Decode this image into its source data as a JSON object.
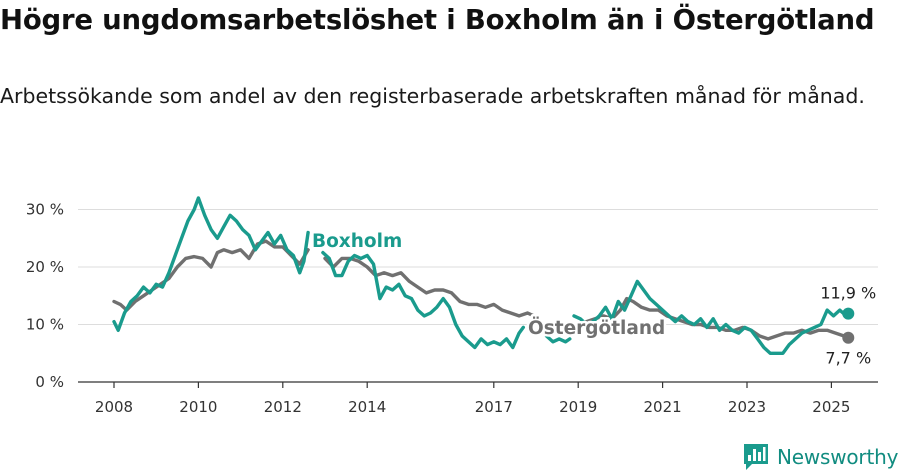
{
  "header": {
    "title": "Högre ungdomsarbetslöshet i Boxholm än i Östergötland",
    "subtitle": "Arbetssökande som andel av den registerbaserade arbetskraften månad för månad."
  },
  "brand": {
    "name": "Newsworthy",
    "logo_icon": "bar-chart-icon",
    "color": "#1a9b8d"
  },
  "chart_data": {
    "type": "line",
    "title": "Högre ungdomsarbetslöshet i Boxholm än i Östergötland",
    "subtitle": "Arbetssökande som andel av den registerbaserade arbetskraften månad för månad.",
    "xlabel": "",
    "ylabel": "",
    "ylim": [
      0,
      35
    ],
    "y_ticks": [
      0,
      10,
      20,
      30
    ],
    "y_tick_labels": [
      "0 %",
      "10 %",
      "20 %",
      "30 %"
    ],
    "x_ticks": [
      2008,
      2010,
      2012,
      2014,
      2017,
      2019,
      2021,
      2023,
      2025
    ],
    "x_tick_labels": [
      "2008",
      "2010",
      "2012",
      "2014",
      "2017",
      "2019",
      "2021",
      "2023",
      "2025"
    ],
    "grid": "horizontal",
    "legend": "inline labels",
    "series": [
      {
        "name": "Boxholm",
        "color": "#1a9b8d",
        "end_label": "11,9 %",
        "points": [
          [
            2008.0,
            10.5
          ],
          [
            2008.1,
            9.0
          ],
          [
            2008.25,
            12.0
          ],
          [
            2008.4,
            14.0
          ],
          [
            2008.55,
            15.0
          ],
          [
            2008.7,
            16.5
          ],
          [
            2008.85,
            15.5
          ],
          [
            2009.0,
            17.0
          ],
          [
            2009.15,
            16.5
          ],
          [
            2009.3,
            19.0
          ],
          [
            2009.45,
            22.0
          ],
          [
            2009.6,
            25.0
          ],
          [
            2009.75,
            28.0
          ],
          [
            2009.9,
            30.0
          ],
          [
            2010.0,
            32.0
          ],
          [
            2010.15,
            29.0
          ],
          [
            2010.3,
            26.5
          ],
          [
            2010.45,
            25.0
          ],
          [
            2010.6,
            27.0
          ],
          [
            2010.75,
            29.0
          ],
          [
            2010.9,
            28.0
          ],
          [
            2011.05,
            26.5
          ],
          [
            2011.2,
            25.5
          ],
          [
            2011.35,
            23.0
          ],
          [
            2011.5,
            24.5
          ],
          [
            2011.65,
            26.0
          ],
          [
            2011.8,
            24.0
          ],
          [
            2011.95,
            25.5
          ],
          [
            2012.1,
            23.0
          ],
          [
            2012.25,
            22.0
          ],
          [
            2012.4,
            19.0
          ],
          [
            2012.5,
            21.0
          ],
          [
            2012.6,
            26.0
          ],
          null,
          [
            2012.95,
            22.5
          ],
          [
            2013.1,
            21.5
          ],
          [
            2013.25,
            18.5
          ],
          [
            2013.4,
            18.5
          ],
          [
            2013.55,
            21.0
          ],
          [
            2013.7,
            22.0
          ],
          [
            2013.85,
            21.5
          ],
          [
            2014.0,
            22.0
          ],
          [
            2014.15,
            20.5
          ],
          [
            2014.3,
            14.5
          ],
          [
            2014.45,
            16.5
          ],
          [
            2014.6,
            16.0
          ],
          [
            2014.75,
            17.0
          ],
          [
            2014.9,
            15.0
          ],
          [
            2015.05,
            14.5
          ],
          [
            2015.2,
            12.5
          ],
          [
            2015.35,
            11.5
          ],
          [
            2015.5,
            12.0
          ],
          [
            2015.65,
            13.0
          ],
          [
            2015.8,
            14.5
          ],
          [
            2015.95,
            13.0
          ],
          [
            2016.1,
            10.0
          ],
          [
            2016.25,
            8.0
          ],
          [
            2016.4,
            7.0
          ],
          [
            2016.55,
            6.0
          ],
          [
            2016.7,
            7.5
          ],
          [
            2016.85,
            6.5
          ],
          [
            2017.0,
            7.0
          ],
          [
            2017.15,
            6.5
          ],
          [
            2017.3,
            7.5
          ],
          [
            2017.45,
            6.0
          ],
          [
            2017.6,
            8.5
          ],
          [
            2017.7,
            9.5
          ],
          null,
          [
            2018.25,
            8.0
          ],
          [
            2018.4,
            7.0
          ],
          [
            2018.55,
            7.5
          ],
          [
            2018.7,
            7.0
          ],
          [
            2018.8,
            7.5
          ],
          null,
          [
            2018.9,
            11.5
          ],
          [
            2019.05,
            11.0
          ],
          [
            2019.2,
            10.0
          ],
          [
            2019.35,
            10.5
          ],
          [
            2019.5,
            11.5
          ],
          [
            2019.65,
            13.0
          ],
          [
            2019.8,
            11.0
          ],
          [
            2019.95,
            14.0
          ],
          [
            2020.1,
            12.5
          ],
          [
            2020.25,
            15.0
          ],
          [
            2020.4,
            17.5
          ],
          [
            2020.55,
            16.0
          ],
          [
            2020.7,
            14.5
          ],
          [
            2020.85,
            13.5
          ],
          [
            2021.0,
            12.5
          ],
          [
            2021.15,
            11.5
          ],
          [
            2021.3,
            10.5
          ],
          [
            2021.45,
            11.5
          ],
          [
            2021.6,
            10.5
          ],
          [
            2021.75,
            10.0
          ],
          [
            2021.9,
            11.0
          ],
          [
            2022.05,
            9.5
          ],
          [
            2022.2,
            11.0
          ],
          [
            2022.35,
            9.0
          ],
          [
            2022.5,
            10.0
          ],
          [
            2022.65,
            9.0
          ],
          [
            2022.8,
            8.5
          ],
          [
            2022.95,
            9.5
          ],
          [
            2023.1,
            9.0
          ],
          [
            2023.25,
            7.5
          ],
          [
            2023.4,
            6.0
          ],
          [
            2023.55,
            5.0
          ],
          [
            2023.7,
            5.0
          ],
          [
            2023.85,
            5.0
          ],
          [
            2024.0,
            6.5
          ],
          [
            2024.15,
            7.5
          ],
          [
            2024.3,
            8.5
          ],
          [
            2024.45,
            9.0
          ],
          [
            2024.6,
            9.5
          ],
          [
            2024.75,
            10.0
          ],
          [
            2024.9,
            12.5
          ],
          [
            2025.05,
            11.5
          ],
          [
            2025.2,
            12.5
          ],
          [
            2025.35,
            11.5
          ],
          [
            2025.4,
            11.9
          ]
        ]
      },
      {
        "name": "Östergötland",
        "color": "#707070",
        "end_label": "7,7 %",
        "points": [
          [
            2008.0,
            14.0
          ],
          [
            2008.15,
            13.5
          ],
          [
            2008.3,
            12.5
          ],
          [
            2008.5,
            14.0
          ],
          [
            2008.7,
            15.0
          ],
          [
            2008.9,
            16.0
          ],
          [
            2009.1,
            17.0
          ],
          [
            2009.3,
            18.0
          ],
          [
            2009.5,
            20.0
          ],
          [
            2009.7,
            21.5
          ],
          [
            2009.9,
            21.8
          ],
          [
            2010.1,
            21.5
          ],
          [
            2010.3,
            20.0
          ],
          [
            2010.45,
            22.5
          ],
          [
            2010.6,
            23.0
          ],
          [
            2010.8,
            22.5
          ],
          [
            2011.0,
            23.0
          ],
          [
            2011.2,
            21.5
          ],
          [
            2011.4,
            24.0
          ],
          [
            2011.6,
            24.5
          ],
          [
            2011.8,
            23.5
          ],
          [
            2012.0,
            23.5
          ],
          [
            2012.2,
            22.0
          ],
          [
            2012.4,
            20.5
          ],
          [
            2012.6,
            23.0
          ],
          null,
          [
            2013.0,
            21.5
          ],
          [
            2013.2,
            20.0
          ],
          [
            2013.4,
            21.5
          ],
          [
            2013.6,
            21.5
          ],
          [
            2013.8,
            21.0
          ],
          [
            2014.0,
            20.0
          ],
          [
            2014.2,
            18.5
          ],
          [
            2014.4,
            19.0
          ],
          [
            2014.6,
            18.5
          ],
          [
            2014.8,
            19.0
          ],
          [
            2015.0,
            17.5
          ],
          [
            2015.2,
            16.5
          ],
          [
            2015.4,
            15.5
          ],
          [
            2015.6,
            16.0
          ],
          [
            2015.8,
            16.0
          ],
          [
            2016.0,
            15.5
          ],
          [
            2016.2,
            14.0
          ],
          [
            2016.4,
            13.5
          ],
          [
            2016.6,
            13.5
          ],
          [
            2016.8,
            13.0
          ],
          [
            2017.0,
            13.5
          ],
          [
            2017.2,
            12.5
          ],
          [
            2017.4,
            12.0
          ],
          [
            2017.6,
            11.5
          ],
          [
            2017.8,
            12.0
          ],
          [
            2017.95,
            11.5
          ],
          null,
          [
            2019.0,
            10.0
          ],
          [
            2019.2,
            10.5
          ],
          [
            2019.4,
            11.0
          ],
          [
            2019.6,
            11.5
          ],
          [
            2019.8,
            11.0
          ],
          [
            2020.0,
            12.5
          ],
          [
            2020.15,
            14.5
          ],
          [
            2020.3,
            14.0
          ],
          [
            2020.5,
            13.0
          ],
          [
            2020.7,
            12.5
          ],
          [
            2020.9,
            12.5
          ],
          [
            2021.1,
            11.5
          ],
          [
            2021.3,
            11.0
          ],
          [
            2021.5,
            10.5
          ],
          [
            2021.7,
            10.0
          ],
          [
            2021.9,
            10.0
          ],
          [
            2022.1,
            9.5
          ],
          [
            2022.3,
            9.5
          ],
          [
            2022.5,
            9.0
          ],
          [
            2022.7,
            9.0
          ],
          [
            2022.9,
            9.5
          ],
          [
            2023.1,
            9.0
          ],
          [
            2023.3,
            8.0
          ],
          [
            2023.5,
            7.5
          ],
          [
            2023.7,
            8.0
          ],
          [
            2023.9,
            8.5
          ],
          [
            2024.1,
            8.5
          ],
          [
            2024.3,
            9.0
          ],
          [
            2024.5,
            8.5
          ],
          [
            2024.7,
            9.0
          ],
          [
            2024.9,
            9.0
          ],
          [
            2025.1,
            8.5
          ],
          [
            2025.3,
            8.0
          ],
          [
            2025.4,
            7.7
          ]
        ]
      }
    ]
  }
}
